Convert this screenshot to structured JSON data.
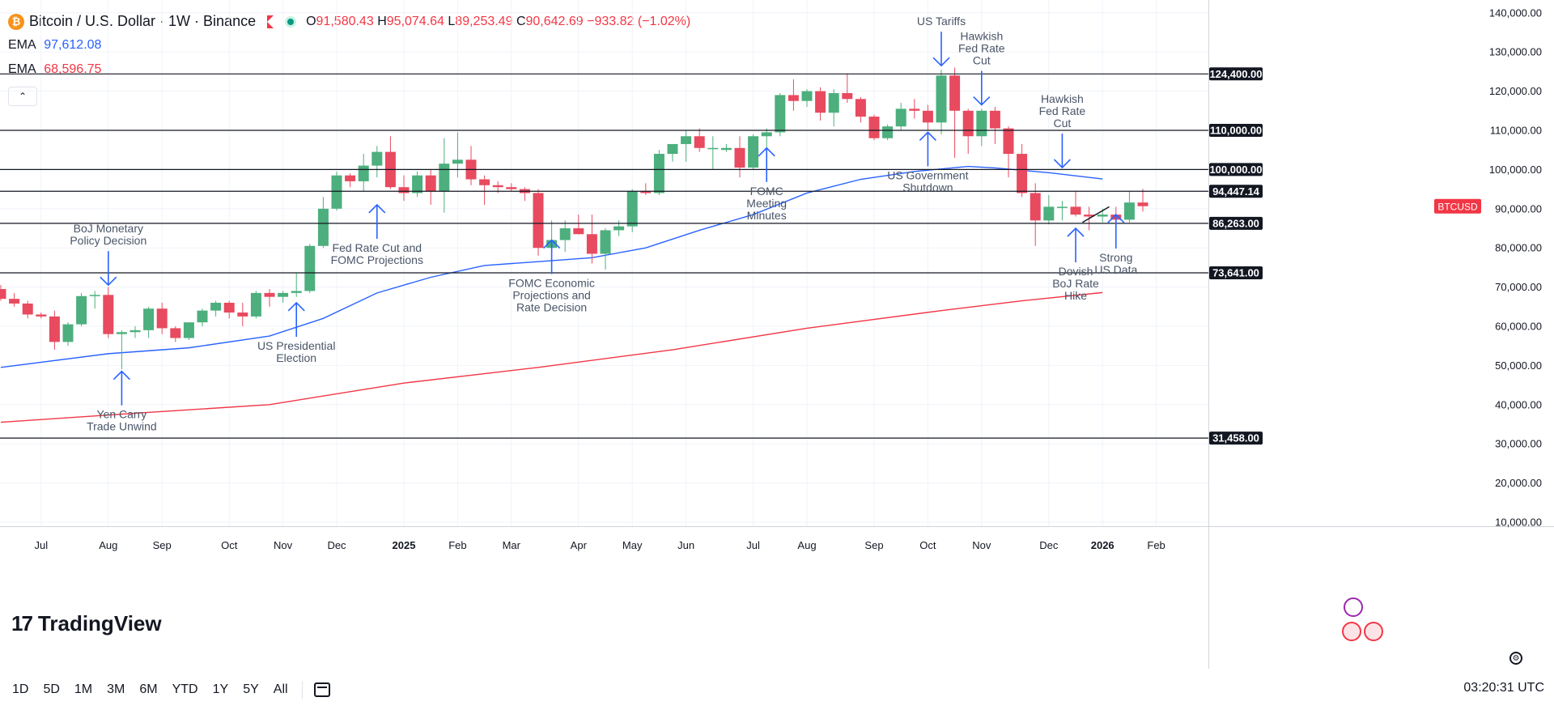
{
  "header": {
    "coin_glyph": "₿",
    "title": "Bitcoin / U.S. Dollar · 1W · Binance",
    "ohlc": {
      "o_label": "O",
      "o": "91,580.43",
      "h_label": "H",
      "h": "95,074.64",
      "l_label": "L",
      "l": "89,253.49",
      "c_label": "C",
      "c": "90,642.69",
      "change": "−933.82 (−1.02%)"
    },
    "ema1_label": "EMA",
    "ema1_value": "97,612.08",
    "ema1_color": "#2962ff",
    "ema2_label": "EMA",
    "ema2_value": "68,596.75",
    "ema2_color": "#f23645",
    "collapse_glyph": "⌃"
  },
  "logo": {
    "mark": "17",
    "text": "TradingView"
  },
  "bottom": {
    "ranges": [
      "1D",
      "5D",
      "1M",
      "3M",
      "6M",
      "YTD",
      "1Y",
      "5Y",
      "All"
    ],
    "time": "03:20:31 UTC"
  },
  "colors": {
    "up": "#4caf7d",
    "down": "#e84a5f",
    "ema_fast": "#2962ff",
    "ema_slow": "#f23645",
    "level": "#131722",
    "annotation_arrow": "#2962ff"
  },
  "chart_data": {
    "type": "candlestick",
    "ylim": [
      10000,
      140000
    ],
    "yticks": [
      "140,000.00",
      "130,000.00",
      "120,000.00",
      "110,000.00",
      "100,000.00",
      "90,000.00",
      "80,000.00",
      "70,000.00",
      "60,000.00",
      "50,000.00",
      "40,000.00",
      "30,000.00",
      "20,000.00",
      "10,000.00"
    ],
    "ytick_values": [
      140000,
      130000,
      120000,
      110000,
      100000,
      90000,
      80000,
      70000,
      60000,
      50000,
      40000,
      30000,
      20000,
      10000
    ],
    "xticks": [
      {
        "label": "Jul",
        "week": 3
      },
      {
        "label": "Aug",
        "week": 8
      },
      {
        "label": "Sep",
        "week": 12
      },
      {
        "label": "Oct",
        "week": 17
      },
      {
        "label": "Nov",
        "week": 21
      },
      {
        "label": "Dec",
        "week": 25
      },
      {
        "label": "2025",
        "week": 30,
        "bold": true
      },
      {
        "label": "Feb",
        "week": 34
      },
      {
        "label": "Mar",
        "week": 38
      },
      {
        "label": "Apr",
        "week": 43
      },
      {
        "label": "May",
        "week": 47
      },
      {
        "label": "Jun",
        "week": 51
      },
      {
        "label": "Jul",
        "week": 56
      },
      {
        "label": "Aug",
        "week": 60
      },
      {
        "label": "Sep",
        "week": 65
      },
      {
        "label": "Oct",
        "week": 69
      },
      {
        "label": "Nov",
        "week": 73
      },
      {
        "label": "Dec",
        "week": 78
      },
      {
        "label": "2026",
        "week": 82,
        "bold": true
      },
      {
        "label": "Feb",
        "week": 86
      }
    ],
    "levels": [
      {
        "value": 124400,
        "label": "124,400.00"
      },
      {
        "value": 110000,
        "label": "110,000.00"
      },
      {
        "value": 100000,
        "label": "100,000.00"
      },
      {
        "value": 94447.14,
        "label": "94,447.14"
      },
      {
        "value": 86263,
        "label": "86,263.00"
      },
      {
        "value": 73641,
        "label": "73,641.00"
      },
      {
        "value": 31458,
        "label": "31,458.00"
      }
    ],
    "price_tag": {
      "label": "BTCUSD",
      "value": 90642.69
    },
    "candles": [
      [
        69500,
        70500,
        66500,
        67000
      ],
      [
        67000,
        68500,
        65000,
        65800
      ],
      [
        65800,
        66500,
        62000,
        63000
      ],
      [
        63000,
        63500,
        62000,
        62500
      ],
      [
        62500,
        64000,
        54000,
        56000
      ],
      [
        56000,
        61000,
        55000,
        60500
      ],
      [
        60500,
        68500,
        60000,
        67700
      ],
      [
        67700,
        69000,
        64500,
        68000
      ],
      [
        68000,
        70000,
        57000,
        58000
      ],
      [
        58000,
        59000,
        49000,
        58500
      ],
      [
        58500,
        60000,
        57000,
        59000
      ],
      [
        59000,
        65000,
        57000,
        64500
      ],
      [
        64500,
        66000,
        58000,
        59500
      ],
      [
        59500,
        60000,
        56000,
        57000
      ],
      [
        57000,
        61000,
        56500,
        61000
      ],
      [
        61000,
        64500,
        60000,
        64000
      ],
      [
        64000,
        66500,
        62500,
        66000
      ],
      [
        66000,
        66500,
        62000,
        63500
      ],
      [
        63500,
        66000,
        60000,
        62500
      ],
      [
        62500,
        69000,
        62000,
        68500
      ],
      [
        68500,
        69500,
        65000,
        67500
      ],
      [
        67500,
        69000,
        66000,
        68500
      ],
      [
        68500,
        73500,
        67500,
        69000
      ],
      [
        69000,
        81000,
        68500,
        80500
      ],
      [
        80500,
        93000,
        80000,
        90000
      ],
      [
        90000,
        99500,
        89500,
        98500
      ],
      [
        98500,
        99000,
        95500,
        97000
      ],
      [
        97000,
        104000,
        94500,
        101000
      ],
      [
        101000,
        106000,
        98000,
        104500
      ],
      [
        104500,
        108500,
        95000,
        95500
      ],
      [
        95500,
        98500,
        92000,
        94000
      ],
      [
        94000,
        99500,
        93000,
        98500
      ],
      [
        98500,
        100000,
        91000,
        94500
      ],
      [
        94500,
        108000,
        89000,
        101500
      ],
      [
        101500,
        109500,
        98000,
        102500
      ],
      [
        102500,
        106000,
        96000,
        97500
      ],
      [
        97500,
        98500,
        91000,
        96000
      ],
      [
        96000,
        97000,
        94000,
        95500
      ],
      [
        95500,
        96500,
        94500,
        95000
      ],
      [
        95000,
        95500,
        92000,
        94000
      ],
      [
        94000,
        95000,
        78000,
        80000
      ],
      [
        80000,
        87000,
        79000,
        82000
      ],
      [
        82000,
        87000,
        79000,
        85000
      ],
      [
        85000,
        88500,
        83500,
        83500
      ],
      [
        83500,
        88500,
        76000,
        78500
      ],
      [
        78500,
        85000,
        74500,
        84500
      ],
      [
        84500,
        87000,
        83000,
        85500
      ],
      [
        85500,
        95000,
        84000,
        94500
      ],
      [
        94500,
        96500,
        93500,
        94000
      ],
      [
        94000,
        105000,
        93500,
        104000
      ],
      [
        104000,
        106000,
        102000,
        106500
      ],
      [
        106500,
        110000,
        102000,
        108500
      ],
      [
        108500,
        110500,
        104500,
        105500
      ],
      [
        105500,
        108500,
        100000,
        105500
      ],
      [
        105000,
        106500,
        104500,
        105500
      ],
      [
        105500,
        108500,
        98000,
        100500
      ],
      [
        100500,
        109000,
        100000,
        108500
      ],
      [
        108500,
        110500,
        105500,
        109500
      ],
      [
        109500,
        119500,
        108500,
        119000
      ],
      [
        119000,
        123000,
        115000,
        117500
      ],
      [
        117500,
        120500,
        116000,
        120000
      ],
      [
        120000,
        121000,
        112500,
        114500
      ],
      [
        114500,
        120500,
        111000,
        119500
      ],
      [
        119500,
        124500,
        117000,
        118000
      ],
      [
        118000,
        118500,
        112000,
        113500
      ],
      [
        113500,
        114000,
        107500,
        108000
      ],
      [
        108000,
        111500,
        107500,
        111000
      ],
      [
        111000,
        117000,
        110000,
        115500
      ],
      [
        115500,
        118000,
        113000,
        115000
      ],
      [
        115000,
        116500,
        110000,
        112000
      ],
      [
        112000,
        125500,
        109000,
        124000
      ],
      [
        124000,
        126000,
        103000,
        115000
      ],
      [
        115000,
        115500,
        104000,
        108500
      ],
      [
        108500,
        115500,
        106000,
        115000
      ],
      [
        115000,
        116000,
        106500,
        110500
      ],
      [
        110500,
        111000,
        98000,
        104000
      ],
      [
        104000,
        106500,
        93000,
        94000
      ],
      [
        94000,
        96500,
        80500,
        87000
      ],
      [
        87000,
        93500,
        86000,
        90500
      ],
      [
        90500,
        92000,
        87000,
        90500
      ],
      [
        90500,
        94500,
        88000,
        88500
      ],
      [
        88500,
        90500,
        84500,
        88000
      ],
      [
        88000,
        90000,
        86500,
        88500
      ],
      [
        88500,
        90500,
        86000,
        87200
      ],
      [
        87200,
        94500,
        86500,
        91580
      ],
      [
        91580,
        95075,
        89253,
        90643
      ]
    ],
    "ema_fast": [
      [
        0,
        49500
      ],
      [
        8,
        53000
      ],
      [
        14,
        54500
      ],
      [
        20,
        57500
      ],
      [
        24,
        62000
      ],
      [
        28,
        68500
      ],
      [
        32,
        72500
      ],
      [
        36,
        75500
      ],
      [
        40,
        76500
      ],
      [
        44,
        77500
      ],
      [
        48,
        80000
      ],
      [
        52,
        84500
      ],
      [
        56,
        88500
      ],
      [
        60,
        94000
      ],
      [
        64,
        97500
      ],
      [
        68,
        99500
      ],
      [
        72,
        100800
      ],
      [
        74,
        100400
      ],
      [
        78,
        99200
      ],
      [
        82,
        97600
      ]
    ],
    "ema_slow": [
      [
        0,
        35500
      ],
      [
        10,
        37800
      ],
      [
        20,
        40000
      ],
      [
        30,
        45500
      ],
      [
        40,
        49500
      ],
      [
        50,
        54000
      ],
      [
        60,
        59500
      ],
      [
        70,
        64000
      ],
      [
        76,
        66500
      ],
      [
        82,
        68600
      ]
    ],
    "annotations": [
      {
        "text": [
          "BoJ Monetary",
          "Policy Decision"
        ],
        "week": 8,
        "dir": "down",
        "value": 70500
      },
      {
        "text": [
          "Yen Carry",
          "Trade Unwind"
        ],
        "week": 9,
        "dir": "up",
        "value": 48500
      },
      {
        "text": [
          "US Presidential",
          "Election"
        ],
        "week": 22,
        "dir": "up",
        "value": 66000
      },
      {
        "text": [
          "Fed Rate Cut and",
          "FOMC Projections"
        ],
        "week": 28,
        "dir": "up",
        "value": 91000
      },
      {
        "text": [
          "FOMC Economic",
          "Projections and",
          "Rate Decision"
        ],
        "week": 41,
        "dir": "up",
        "value": 82000
      },
      {
        "text": [
          "FOMC",
          "Meeting",
          "Minutes"
        ],
        "week": 57,
        "dir": "up",
        "value": 105500
      },
      {
        "text": [
          "US Tariffs"
        ],
        "week": 70,
        "dir": "down",
        "value": 126500
      },
      {
        "text": [
          "Hawkish",
          "Fed Rate",
          "Cut"
        ],
        "week": 73,
        "dir": "down",
        "value": 116500
      },
      {
        "text": [
          "US Government",
          "Shutdown"
        ],
        "week": 69,
        "dir": "up",
        "value": 109500
      },
      {
        "text": [
          "Hawkish",
          "Fed Rate",
          "Cut"
        ],
        "week": 79,
        "dir": "down",
        "value": 100500
      },
      {
        "text": [
          "Dovish",
          "BoJ Rate",
          "Hike"
        ],
        "week": 80,
        "dir": "up",
        "value": 85000
      },
      {
        "text": [
          "Strong",
          "US Data"
        ],
        "week": 83,
        "dir": "up",
        "value": 88500
      }
    ]
  }
}
